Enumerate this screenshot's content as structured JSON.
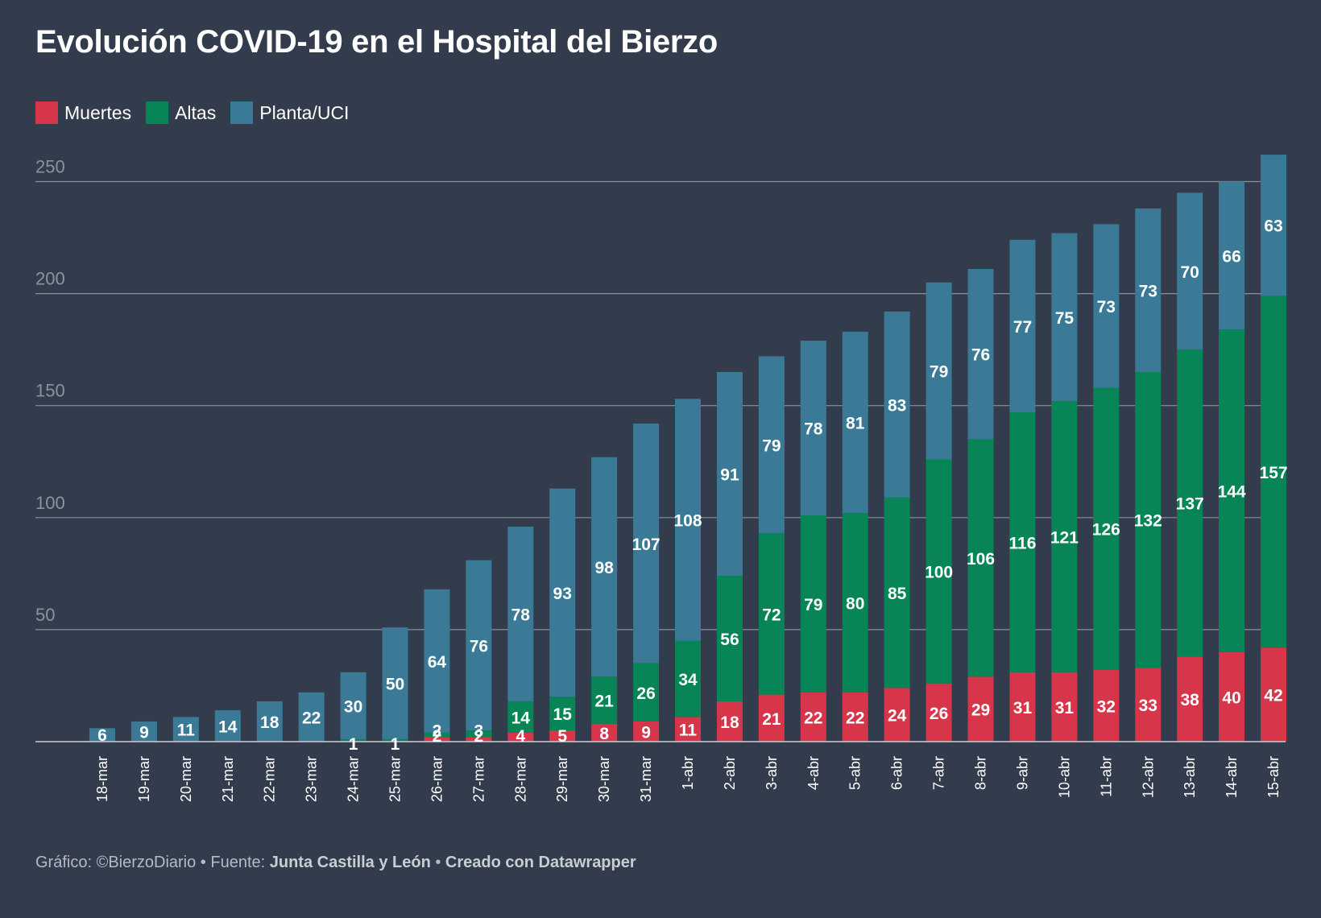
{
  "title": "Evolución COVID-19 en el Hospital del Bierzo",
  "legend": [
    {
      "label": "Muertes",
      "color": "#d7354a"
    },
    {
      "label": "Altas",
      "color": "#078557"
    },
    {
      "label": "Planta/UCI",
      "color": "#3a7a96"
    }
  ],
  "footer": {
    "prefix": "Gráfico: ©BierzoDiario • Fuente: ",
    "source": "Junta Castilla y León",
    "separator": " • ",
    "credit": "Creado con Datawrapper"
  },
  "colors": {
    "background": "#333c4d",
    "grid": "#8a919c",
    "axis_text": "#8d939d",
    "muertes": "#d7354a",
    "altas": "#078557",
    "planta": "#3a7a96"
  },
  "chart_data": {
    "type": "bar",
    "stacked": true,
    "title": "Evolución COVID-19 en el Hospital del Bierzo",
    "xlabel": "",
    "ylabel": "",
    "ylim": [
      0,
      260
    ],
    "yticks": [
      50,
      100,
      150,
      200,
      250
    ],
    "grid": true,
    "legend_position": "top-left",
    "categories": [
      "18-mar",
      "19-mar",
      "20-mar",
      "21-mar",
      "22-mar",
      "23-mar",
      "24-mar",
      "25-mar",
      "26-mar",
      "27-mar",
      "28-mar",
      "29-mar",
      "30-mar",
      "31-mar",
      "1-abr",
      "2-abr",
      "3-abr",
      "4-abr",
      "5-abr",
      "6-abr",
      "7-abr",
      "8-abr",
      "9-abr",
      "10-abr",
      "11-abr",
      "12-abr",
      "13-abr",
      "14-abr",
      "15-abr"
    ],
    "series": [
      {
        "name": "Muertes",
        "values": [
          0,
          0,
          0,
          0,
          0,
          0,
          0,
          0,
          2,
          2,
          4,
          5,
          8,
          9,
          11,
          18,
          21,
          22,
          22,
          24,
          26,
          29,
          31,
          31,
          32,
          33,
          38,
          40,
          42
        ]
      },
      {
        "name": "Altas",
        "values": [
          0,
          0,
          0,
          0,
          0,
          0,
          1,
          1,
          2,
          3,
          14,
          15,
          21,
          26,
          34,
          56,
          72,
          79,
          80,
          85,
          100,
          106,
          116,
          121,
          126,
          132,
          137,
          144,
          157
        ]
      },
      {
        "name": "Planta/UCI",
        "values": [
          6,
          9,
          11,
          14,
          18,
          22,
          30,
          50,
          64,
          76,
          78,
          93,
          98,
          107,
          108,
          91,
          79,
          78,
          81,
          83,
          79,
          76,
          77,
          75,
          73,
          73,
          70,
          66,
          63
        ]
      }
    ]
  }
}
